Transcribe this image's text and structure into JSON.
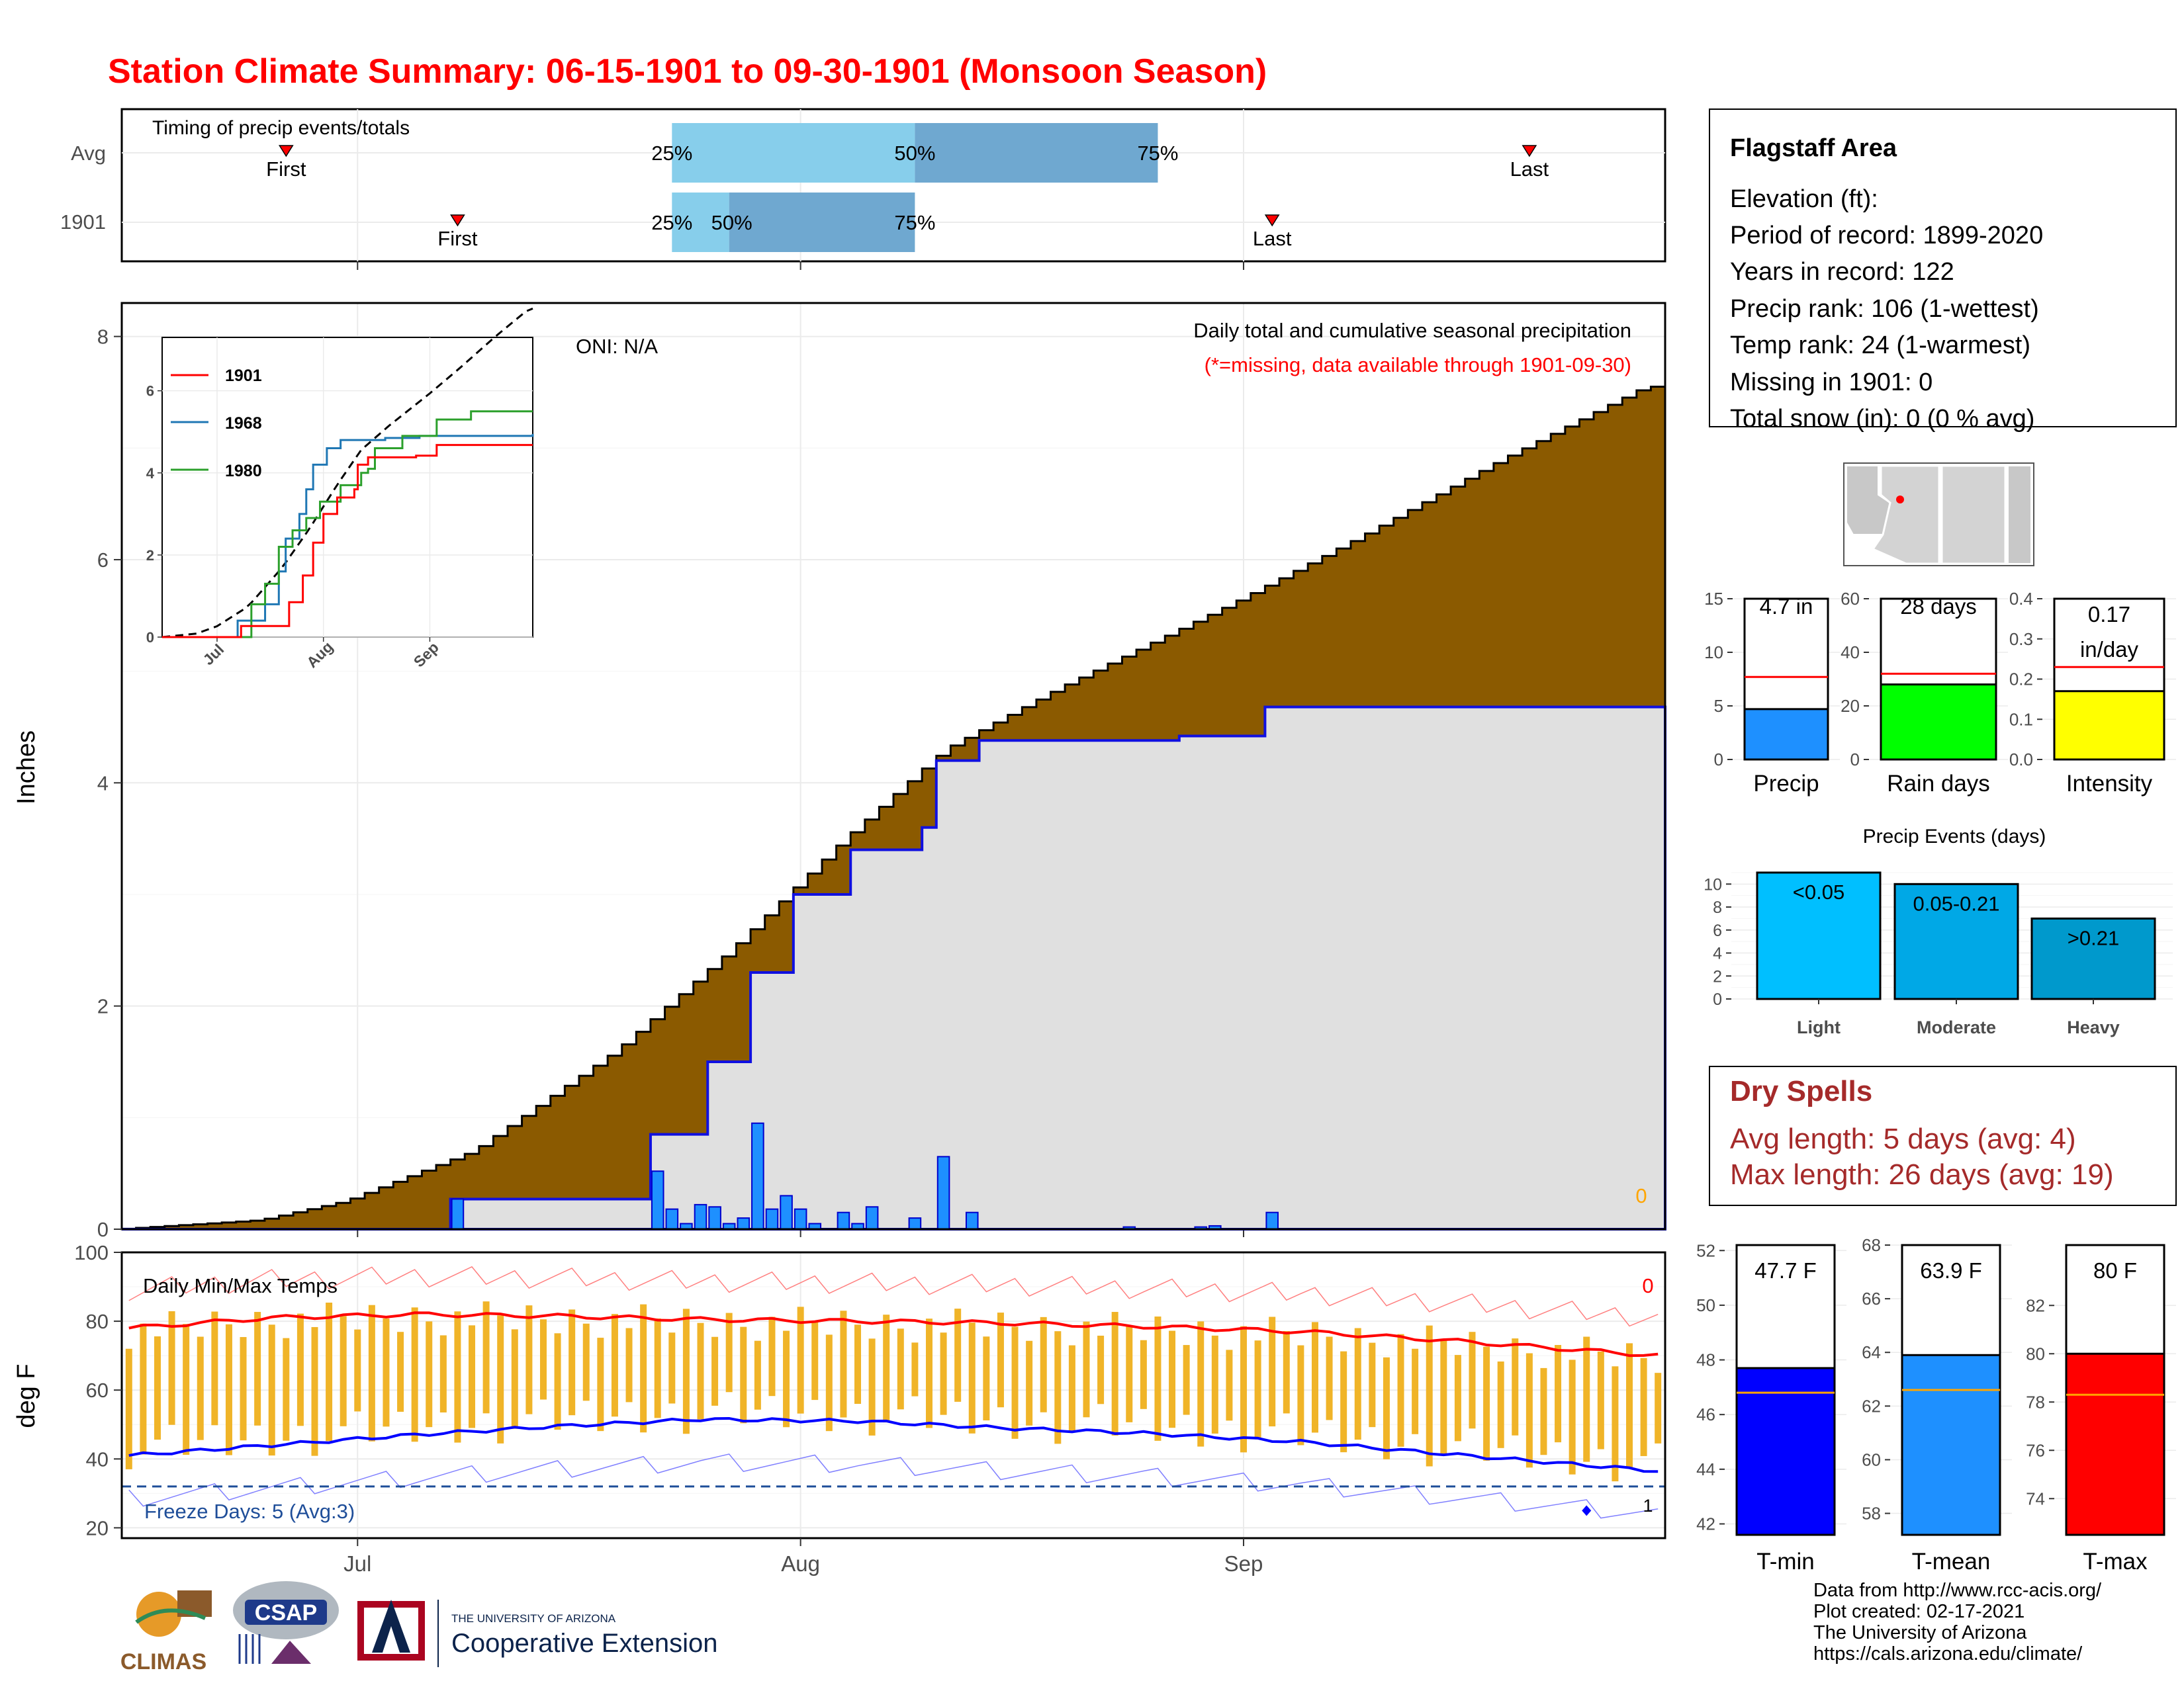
{
  "title": "Station Climate Summary: 06-15-1901 to 09-30-1901 (Monsoon Season)",
  "colors": {
    "title": "#ff0000",
    "brown": "#8b5a00",
    "light_gray": "#e0e0e0",
    "blue_bar": "#1e90ff",
    "precip_red": "#ff0000",
    "tmax_red": "#ff0000",
    "tmin_blue": "#0000ff",
    "temp_bar": "#f0b428",
    "dry_red": "#a52a2a",
    "freeze_line": "#1f4e99"
  },
  "timing_panel": {
    "title": "Timing of precip events/totals",
    "row_labels": [
      "Avg",
      "1901"
    ],
    "first_label": "First",
    "last_label": "Last",
    "pct_labels": [
      "25%",
      "50%",
      "75%"
    ],
    "avg": {
      "first": "1901-06-26",
      "p25": "1901-07-23",
      "p50": "1901-08-09",
      "p75": "1901-08-26",
      "last": "1901-09-21"
    },
    "year": {
      "first": "1901-07-08",
      "p25": "1901-07-23",
      "p50": "1901-07-27",
      "p75": "1901-08-09",
      "last": "1901-09-03"
    }
  },
  "precip_panel": {
    "ylabel": "Inches",
    "yticks": [
      "0",
      "2",
      "4",
      "6",
      "8"
    ],
    "ylim": [
      0,
      8.3
    ],
    "oni": "ONI: N/A",
    "caption1": "Daily total and cumulative seasonal precipitation",
    "caption2": "(*=missing, data available through 1901-09-30)",
    "missing_count": "0"
  },
  "inset": {
    "legend": [
      "1901",
      "1968",
      "1980"
    ],
    "legend_colors": [
      "#ff0000",
      "#1f77b4",
      "#2ca02c"
    ],
    "yticks": [
      "0",
      "2",
      "4",
      "6"
    ],
    "xticks": [
      "Jul",
      "Aug",
      "Sep"
    ]
  },
  "temp_panel": {
    "ylabel": "deg F",
    "title": "Daily Min/Max Temps",
    "yticks": [
      "20",
      "40",
      "60",
      "80",
      "100"
    ],
    "freeze_label": "Freeze Days: 5 (Avg:3)",
    "count_top": "0",
    "count_bottom": "1",
    "xticks": [
      "Jul",
      "Aug",
      "Sep"
    ]
  },
  "station": {
    "name": "Flagstaff Area",
    "lines": [
      "Elevation (ft):",
      "Period of record: 1899-2020",
      "Years in record: 122",
      "Precip rank: 106 (1-wettest)",
      "Temp rank: 24 (1-warmest)",
      "Missing in 1901: 0",
      "Total snow (in): 0 (0 % avg)"
    ]
  },
  "gauges": {
    "precip": {
      "value": 4.7,
      "avg": 7.7,
      "max": 15,
      "ticks": [
        "0",
        "5",
        "10",
        "15"
      ],
      "label": "4.7 in",
      "xlabel": "Precip",
      "color": "#1e90ff"
    },
    "rain_days": {
      "value": 28,
      "avg": 32,
      "max": 60,
      "ticks": [
        "0",
        "20",
        "40",
        "60"
      ],
      "label": "28 days",
      "xlabel": "Rain days",
      "color": "#00ff00"
    },
    "intensity": {
      "value": 0.17,
      "avg": 0.23,
      "max": 0.4,
      "ticks": [
        "0.0",
        "0.1",
        "0.2",
        "0.3",
        "0.4"
      ],
      "label1": "0.17",
      "label2": "in/day",
      "xlabel": "Intensity",
      "color": "#ffff00"
    }
  },
  "events_chart": {
    "title": "Precip Events (days)",
    "categories": [
      "Light",
      "Moderate",
      "Heavy"
    ],
    "values": [
      11,
      10,
      7
    ],
    "labels": [
      "<0.05",
      "0.05-0.21",
      ">0.21"
    ],
    "colors": [
      "#00bfff",
      "#00a8e6",
      "#0099cc"
    ],
    "yticks": [
      "0",
      "2",
      "4",
      "6",
      "8",
      "10"
    ]
  },
  "dry_spells": {
    "title": "Dry Spells",
    "avg_line": "Avg length: 5 days (avg: 4)",
    "max_line": "Max length: 26 days (avg: 19)"
  },
  "temp_gauges": {
    "tmin": {
      "value": 47.7,
      "avg": 46.8,
      "min": 41.6,
      "max": 52.2,
      "ticks": [
        "42",
        "44",
        "46",
        "48",
        "50",
        "52"
      ],
      "label": "47.7 F",
      "xlabel": "T-min",
      "color": "#0000ff"
    },
    "tmean": {
      "value": 63.9,
      "avg": 62.6,
      "min": 57.2,
      "max": 68.0,
      "ticks": [
        "58",
        "60",
        "62",
        "64",
        "66",
        "68"
      ],
      "label": "63.9 F",
      "xlabel": "T-mean",
      "color": "#1e90ff"
    },
    "tmax": {
      "value": 80,
      "avg": 78.3,
      "min": 72.5,
      "max": 84.5,
      "ticks": [
        "74",
        "76",
        "78",
        "80",
        "82"
      ],
      "label": "80 F",
      "xlabel": "T-max",
      "color": "#ff0000"
    }
  },
  "credits": [
    "Data from http://www.rcc-acis.org/",
    "Plot created: 02-17-2021",
    "The University of Arizona",
    "https://cals.arizona.edu/climate/"
  ],
  "logos": {
    "climas": "CLIMAS",
    "csap": "CSAP",
    "ua_small": "THE UNIVERSITY OF ARIZONA",
    "ua_big": "Cooperative Extension"
  },
  "chart_data": [
    {
      "type": "area",
      "title": "Daily total and cumulative seasonal precipitation",
      "ylabel": "Inches",
      "ylim": [
        0,
        8.3
      ],
      "x_start": "1901-06-15",
      "x_end": "1901-09-30",
      "series": [
        {
          "name": "average cumulative",
          "points": [
            [
              "1901-06-15",
              0
            ],
            [
              "1901-06-25",
              0.08
            ],
            [
              "1901-07-01",
              0.25
            ],
            [
              "1901-07-10",
              0.7
            ],
            [
              "1901-07-20",
              1.6
            ],
            [
              "1901-07-28",
              2.5
            ],
            [
              "1901-08-05",
              3.5
            ],
            [
              "1901-08-12",
              4.3
            ],
            [
              "1901-08-20",
              4.85
            ],
            [
              "1901-09-01",
              5.6
            ],
            [
              "1901-09-10",
              6.2
            ],
            [
              "1901-09-20",
              6.9
            ],
            [
              "1901-09-30",
              7.55
            ]
          ]
        },
        {
          "name": "1901 cumulative",
          "points": [
            [
              "1901-06-15",
              0
            ],
            [
              "1901-07-08",
              0
            ],
            [
              "1901-07-08",
              0.27
            ],
            [
              "1901-07-22",
              0.27
            ],
            [
              "1901-07-22",
              0.85
            ],
            [
              "1901-07-26",
              1.5
            ],
            [
              "1901-07-29",
              2.3
            ],
            [
              "1901-08-01",
              3.0
            ],
            [
              "1901-08-05",
              3.4
            ],
            [
              "1901-08-10",
              3.6
            ],
            [
              "1901-08-11",
              4.2
            ],
            [
              "1901-08-14",
              4.38
            ],
            [
              "1901-08-28",
              4.42
            ],
            [
              "1901-09-03",
              4.52
            ],
            [
              "1901-09-03",
              4.68
            ],
            [
              "1901-09-30",
              4.68
            ]
          ]
        }
      ],
      "daily": [
        [
          "1901-07-08",
          0.27
        ],
        [
          "1901-07-22",
          0.52
        ],
        [
          "1901-07-23",
          0.18
        ],
        [
          "1901-07-24",
          0.05
        ],
        [
          "1901-07-25",
          0.22
        ],
        [
          "1901-07-26",
          0.2
        ],
        [
          "1901-07-27",
          0.05
        ],
        [
          "1901-07-28",
          0.1
        ],
        [
          "1901-07-29",
          0.95
        ],
        [
          "1901-07-30",
          0.18
        ],
        [
          "1901-07-31",
          0.3
        ],
        [
          "1901-08-01",
          0.18
        ],
        [
          "1901-08-02",
          0.05
        ],
        [
          "1901-08-04",
          0.15
        ],
        [
          "1901-08-05",
          0.05
        ],
        [
          "1901-08-06",
          0.2
        ],
        [
          "1901-08-09",
          0.1
        ],
        [
          "1901-08-11",
          0.65
        ],
        [
          "1901-08-13",
          0.15
        ],
        [
          "1901-08-24",
          0.02
        ],
        [
          "1901-08-29",
          0.02
        ],
        [
          "1901-08-30",
          0.03
        ],
        [
          "1901-09-03",
          0.15
        ]
      ]
    },
    {
      "type": "line",
      "title": "Daily Min/Max Temps",
      "ylabel": "deg F",
      "ylim": [
        17,
        100
      ],
      "series": [
        {
          "name": "avg max",
          "points": [
            [
              "1901-06-15",
              78
            ],
            [
              "1901-06-25",
              81
            ],
            [
              "1901-07-05",
              82
            ],
            [
              "1901-07-15",
              81.5
            ],
            [
              "1901-07-25",
              80.5
            ],
            [
              "1901-08-05",
              80
            ],
            [
              "1901-08-15",
              79.5
            ],
            [
              "1901-08-25",
              78.5
            ],
            [
              "1901-09-05",
              77
            ],
            [
              "1901-09-15",
              74.5
            ],
            [
              "1901-09-30",
              70
            ]
          ]
        },
        {
          "name": "avg min",
          "points": [
            [
              "1901-06-15",
              41
            ],
            [
              "1901-06-25",
              44
            ],
            [
              "1901-07-05",
              47
            ],
            [
              "1901-07-15",
              49.5
            ],
            [
              "1901-07-25",
              51.5
            ],
            [
              "1901-08-05",
              51
            ],
            [
              "1901-08-15",
              49
            ],
            [
              "1901-08-25",
              47.5
            ],
            [
              "1901-09-05",
              45
            ],
            [
              "1901-09-15",
              41.5
            ],
            [
              "1901-09-30",
              36.5
            ]
          ]
        }
      ],
      "freeze_line": 32
    },
    {
      "type": "bar",
      "categories": [
        "Precip"
      ],
      "values": [
        4.7
      ],
      "ylim": [
        0,
        15
      ]
    },
    {
      "type": "bar",
      "categories": [
        "Rain days"
      ],
      "values": [
        28
      ],
      "ylim": [
        0,
        60
      ]
    },
    {
      "type": "bar",
      "categories": [
        "Intensity"
      ],
      "values": [
        0.17
      ],
      "ylim": [
        0,
        0.4
      ]
    },
    {
      "type": "bar",
      "title": "Precip Events (days)",
      "categories": [
        "Light",
        "Moderate",
        "Heavy"
      ],
      "values": [
        11,
        10,
        7
      ],
      "ylim": [
        0,
        11
      ]
    },
    {
      "type": "bar",
      "categories": [
        "T-min"
      ],
      "values": [
        47.7
      ],
      "ylim": [
        41.6,
        52.2
      ]
    },
    {
      "type": "bar",
      "categories": [
        "T-mean"
      ],
      "values": [
        63.9
      ],
      "ylim": [
        57.2,
        68
      ]
    },
    {
      "type": "bar",
      "categories": [
        "T-max"
      ],
      "values": [
        80
      ],
      "ylim": [
        72.5,
        84.5
      ]
    }
  ]
}
